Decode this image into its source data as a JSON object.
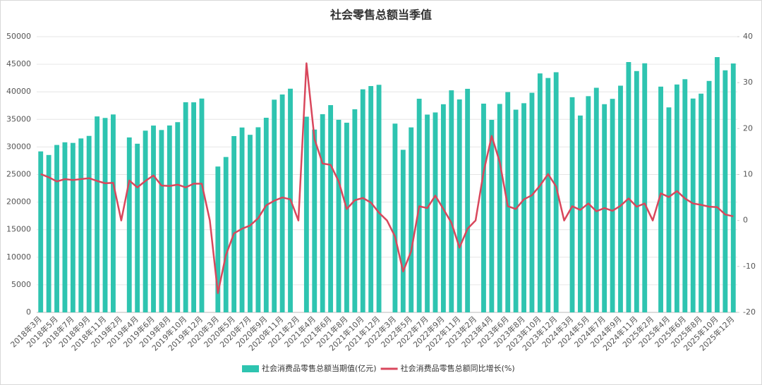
{
  "chart_data": {
    "type": "bar",
    "title": "社会零售总额当季值",
    "categories": [
      "2018年3月",
      null,
      "2018年5月",
      null,
      "2018年7月",
      null,
      "2018年9月",
      null,
      "2018年11月",
      null,
      "2019年2月",
      null,
      "2019年4月",
      null,
      "2019年6月",
      null,
      "2019年8月",
      null,
      "2019年10月",
      null,
      "2019年12月",
      null,
      "2020年3月",
      null,
      "2020年5月",
      null,
      "2020年7月",
      null,
      "2020年9月",
      null,
      "2020年11月",
      null,
      "2021年2月",
      null,
      "2021年4月",
      null,
      "2021年6月",
      null,
      "2021年8月",
      null,
      "2021年10月",
      null,
      "2021年12月",
      null,
      "2022年3月",
      null,
      "2022年5月",
      null,
      "2022年7月",
      null,
      "2022年9月",
      null,
      "2022年11月",
      null,
      "2023年2月",
      null,
      "2023年4月",
      null,
      "2023年6月",
      null,
      "2023年8月",
      null,
      "2023年10月",
      null,
      "2023年12月",
      null,
      "2024年3月",
      null,
      "2024年5月",
      null,
      "2024年7月",
      null,
      "2024年9月",
      null,
      "2024年11月",
      null,
      "2025年2月",
      null,
      "2025年4月",
      null,
      "2025年6月",
      null,
      "2025年8月",
      null,
      "2025年10月",
      null,
      "2025年12月"
    ],
    "series": [
      {
        "name": "社会消费品零售总额当期值(亿元)",
        "type": "bar",
        "axis": "y",
        "color": "#2ec4b0",
        "values": [
          29194,
          28542,
          30359,
          30842,
          30734,
          31542,
          32005,
          35534,
          35260,
          35893,
          null,
          31726,
          30586,
          32956,
          33878,
          33073,
          33896,
          34495,
          38104,
          38094,
          38777,
          null,
          26450,
          28178,
          31973,
          33526,
          32203,
          33571,
          35295,
          38576,
          39514,
          40566,
          null,
          35484,
          33153,
          35945,
          37586,
          34925,
          34395,
          36833,
          40454,
          41043,
          41269,
          null,
          34233,
          29483,
          33547,
          38742,
          35870,
          36258,
          37745,
          40271,
          38615,
          40542,
          null,
          37855,
          34910,
          37803,
          39951,
          36761,
          37933,
          39826,
          43333,
          42505,
          43550,
          null,
          39020,
          35699,
          39211,
          40732,
          37757,
          38726,
          41112,
          45396,
          43763,
          45172,
          null,
          40940,
          37174,
          41326,
          42287,
          38780,
          39668,
          41971,
          46291,
          43898,
          45136
        ]
      },
      {
        "name": "社会消费品零售总额同比增长(%)",
        "type": "line",
        "axis": "y2",
        "color": "#d9475c",
        "values": [
          10.1,
          9.4,
          8.5,
          9.0,
          8.8,
          9.0,
          9.2,
          8.6,
          8.1,
          8.2,
          0,
          8.7,
          7.2,
          8.6,
          9.8,
          7.6,
          7.5,
          7.8,
          7.2,
          8.0,
          8.0,
          0,
          -15.8,
          -7.5,
          -2.8,
          -1.8,
          -1.1,
          0.5,
          3.3,
          4.3,
          5.0,
          4.6,
          0,
          34.2,
          17.7,
          12.4,
          12.1,
          8.5,
          2.5,
          4.4,
          4.9,
          3.9,
          1.7,
          0,
          -3.5,
          -11.1,
          -6.7,
          3.1,
          2.7,
          5.4,
          2.5,
          -0.5,
          -5.9,
          -1.8,
          0,
          10.6,
          18.4,
          12.7,
          3.1,
          2.5,
          4.6,
          5.5,
          7.6,
          10.1,
          7.4,
          0,
          3.1,
          2.3,
          3.7,
          2.0,
          2.7,
          2.1,
          3.2,
          4.8,
          3.0,
          3.7,
          0,
          5.9,
          5.1,
          6.4,
          4.8,
          3.7,
          3.4,
          3.0,
          2.9,
          1.3,
          0.9
        ]
      }
    ],
    "ylim": [
      0,
      50000
    ],
    "yticks": [
      0,
      5000,
      10000,
      15000,
      20000,
      25000,
      30000,
      35000,
      40000,
      45000,
      50000
    ],
    "y2lim": [
      -20,
      40
    ],
    "y2ticks": [
      -20,
      -10,
      0,
      10,
      20,
      30,
      40
    ],
    "grid": true,
    "legend": "bottom"
  }
}
